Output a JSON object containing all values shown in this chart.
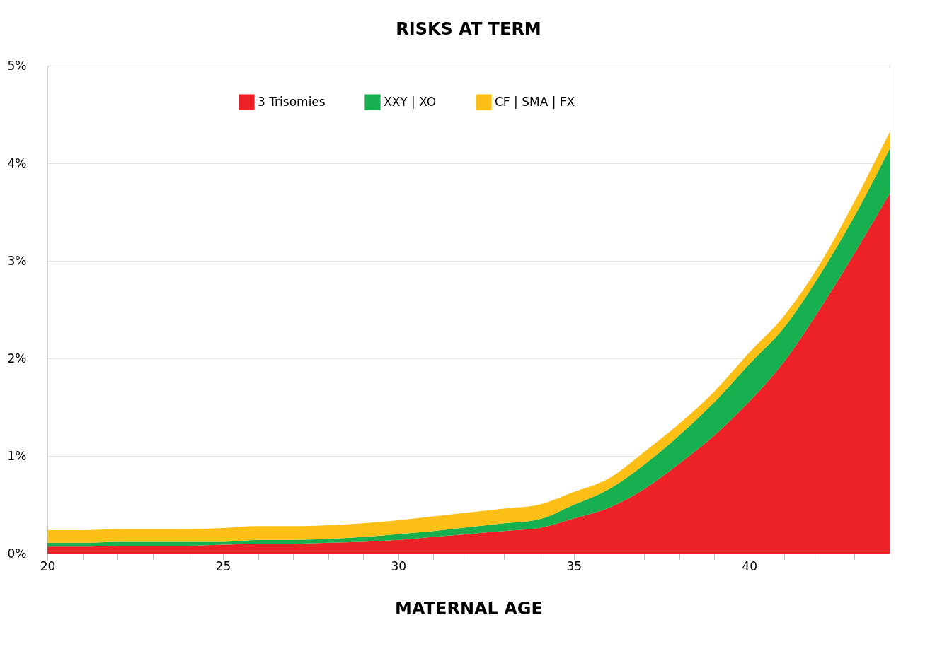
{
  "chart_data": {
    "type": "area",
    "title": "RISKS AT TERM",
    "xlabel": "MATERNAL AGE",
    "stacked": true,
    "grid": "y",
    "legend": "top",
    "x": [
      20,
      21,
      22,
      23,
      24,
      25,
      26,
      27,
      28,
      29,
      30,
      31,
      32,
      33,
      34,
      35,
      36,
      37,
      38,
      39,
      40,
      41,
      42,
      43,
      44
    ],
    "xlim": [
      20,
      44
    ],
    "xticks": [
      20,
      {
        "value": 21,
        "label": null
      },
      {
        "value": 22,
        "label": null
      },
      {
        "value": 23,
        "label": null
      },
      {
        "value": 24,
        "label": null
      },
      25,
      {
        "value": 26,
        "label": null
      },
      {
        "value": 27,
        "label": null
      },
      {
        "value": 28,
        "label": null
      },
      {
        "value": 29,
        "label": null
      },
      30,
      {
        "value": 31,
        "label": null
      },
      {
        "value": 32,
        "label": null
      },
      {
        "value": 33,
        "label": null
      },
      {
        "value": 34,
        "label": null
      },
      35,
      {
        "value": 36,
        "label": null
      },
      {
        "value": 37,
        "label": null
      },
      {
        "value": 38,
        "label": null
      },
      {
        "value": 39,
        "label": null
      },
      40,
      {
        "value": 41,
        "label": null
      },
      {
        "value": 42,
        "label": null
      },
      {
        "value": 43,
        "label": null
      },
      {
        "value": 44,
        "label": null
      }
    ],
    "ylim": [
      0,
      5
    ],
    "yticks": [
      {
        "value": 0,
        "label": "0%"
      },
      {
        "value": 1,
        "label": "1%"
      },
      {
        "value": 2,
        "label": "2%"
      },
      {
        "value": 3,
        "label": "3%"
      },
      {
        "value": 4,
        "label": "4%"
      },
      {
        "value": 5,
        "label": "5%"
      }
    ],
    "series": [
      {
        "name": "3 Trisomies",
        "color": "#ec2227",
        "values": [
          0.07,
          0.07,
          0.08,
          0.08,
          0.08,
          0.09,
          0.1,
          0.1,
          0.11,
          0.12,
          0.14,
          0.17,
          0.2,
          0.23,
          0.26,
          0.36,
          0.47,
          0.66,
          0.92,
          1.21,
          1.56,
          1.97,
          2.5,
          3.08,
          3.69
        ]
      },
      {
        "name": "XXY | XO",
        "color": "#17b050",
        "values": [
          0.04,
          0.04,
          0.04,
          0.04,
          0.04,
          0.03,
          0.04,
          0.04,
          0.04,
          0.05,
          0.06,
          0.06,
          0.07,
          0.08,
          0.09,
          0.14,
          0.19,
          0.25,
          0.29,
          0.34,
          0.38,
          0.35,
          0.35,
          0.38,
          0.46
        ]
      },
      {
        "name": "CF | SMA | FX",
        "color": "#fbbf16",
        "values": [
          0.13,
          0.13,
          0.13,
          0.13,
          0.13,
          0.14,
          0.14,
          0.14,
          0.14,
          0.14,
          0.14,
          0.15,
          0.15,
          0.15,
          0.15,
          0.13,
          0.11,
          0.13,
          0.12,
          0.11,
          0.12,
          0.12,
          0.11,
          0.15,
          0.17
        ]
      }
    ]
  }
}
